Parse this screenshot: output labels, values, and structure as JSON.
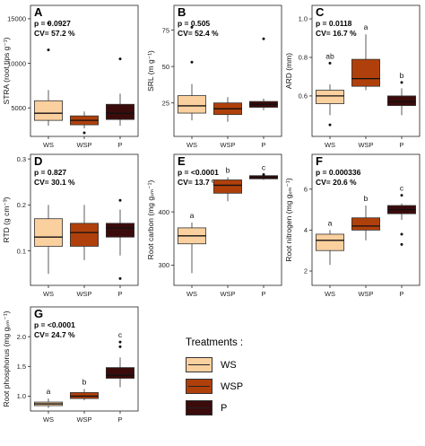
{
  "colors": {
    "WS": "#fbd09f",
    "WSP": "#b0400b",
    "P": "#3b0b0b"
  },
  "legend": {
    "title": "Treatments :",
    "items": [
      {
        "label": "WS",
        "color": "#fbd09f"
      },
      {
        "label": "WSP",
        "color": "#b0400b"
      },
      {
        "label": "P",
        "color": "#3b0b0b"
      }
    ]
  },
  "chart_data": [
    {
      "type": "box",
      "panel": "A",
      "p_text": "p = 0.0927",
      "cv_text": "CV= 57.2 %",
      "ylabel": "STRA (root tips g⁻¹)",
      "ylim": [
        1800,
        16500
      ],
      "yticks": [
        {
          "v": 5000,
          "label": "5000"
        },
        {
          "v": 10000,
          "label": "10000"
        },
        {
          "v": 15000,
          "label": "15000"
        }
      ],
      "categories": [
        "WS",
        "WSP",
        "P"
      ],
      "boxes": [
        {
          "min": 3000,
          "q1": 3600,
          "median": 4400,
          "q3": 5800,
          "max": 7000,
          "outliers": [
            11500,
            14500
          ],
          "letter": ""
        },
        {
          "min": 2700,
          "q1": 3100,
          "median": 3600,
          "q3": 4100,
          "max": 4600,
          "outliers": [
            2200
          ],
          "letter": ""
        },
        {
          "min": 3000,
          "q1": 3700,
          "median": 4400,
          "q3": 5400,
          "max": 6600,
          "outliers": [
            10500
          ],
          "letter": ""
        }
      ]
    },
    {
      "type": "box",
      "panel": "B",
      "p_text": "p = 0.505",
      "cv_text": "CV= 52.4 %",
      "ylabel": "SRL (m g⁻¹)",
      "ylim": [
        2,
        92
      ],
      "yticks": [
        {
          "v": 25,
          "label": "25"
        },
        {
          "v": 50,
          "label": "50"
        },
        {
          "v": 75,
          "label": "75"
        }
      ],
      "categories": [
        "WS",
        "WSP",
        "P"
      ],
      "boxes": [
        {
          "min": 13,
          "q1": 18,
          "median": 23,
          "q3": 30,
          "max": 38,
          "outliers": [
            53,
            77
          ],
          "letter": ""
        },
        {
          "min": 12,
          "q1": 17,
          "median": 21,
          "q3": 25,
          "max": 29,
          "outliers": [],
          "letter": ""
        },
        {
          "min": 20,
          "q1": 22,
          "median": 24,
          "q3": 26,
          "max": 28,
          "outliers": [
            69
          ],
          "letter": ""
        }
      ]
    },
    {
      "type": "box",
      "panel": "C",
      "p_text": "p = 0.0118",
      "cv_text": "CV= 16.7 %",
      "ylabel": "ARD (mm)",
      "ylim": [
        0.39,
        1.07
      ],
      "yticks": [
        {
          "v": 0.6,
          "label": "0.6"
        },
        {
          "v": 0.8,
          "label": "0.8"
        },
        {
          "v": 1.0,
          "label": "1.0"
        }
      ],
      "categories": [
        "WS",
        "WSP",
        "P"
      ],
      "boxes": [
        {
          "min": 0.5,
          "q1": 0.56,
          "median": 0.6,
          "q3": 0.63,
          "max": 0.66,
          "outliers": [
            0.77,
            0.45
          ],
          "letter": "ab"
        },
        {
          "min": 0.63,
          "q1": 0.65,
          "median": 0.69,
          "q3": 0.79,
          "max": 0.92,
          "outliers": [],
          "letter": "a"
        },
        {
          "min": 0.5,
          "q1": 0.55,
          "median": 0.57,
          "q3": 0.6,
          "max": 0.64,
          "outliers": [
            0.67
          ],
          "letter": "b"
        }
      ]
    },
    {
      "type": "box",
      "panel": "D",
      "p_text": "p = 0.827",
      "cv_text": "CV= 30.1 %",
      "ylabel": "RTD (g cm⁻³)",
      "ylim": [
        0.025,
        0.31
      ],
      "yticks": [
        {
          "v": 0.1,
          "label": "0.1"
        },
        {
          "v": 0.2,
          "label": "0.2"
        },
        {
          "v": 0.3,
          "label": "0.3"
        }
      ],
      "categories": [
        "WS",
        "WSP",
        "P"
      ],
      "boxes": [
        {
          "min": 0.05,
          "q1": 0.11,
          "median": 0.13,
          "q3": 0.17,
          "max": 0.2,
          "outliers": [],
          "letter": ""
        },
        {
          "min": 0.08,
          "q1": 0.11,
          "median": 0.14,
          "q3": 0.16,
          "max": 0.2,
          "outliers": [],
          "letter": ""
        },
        {
          "min": 0.09,
          "q1": 0.13,
          "median": 0.15,
          "q3": 0.16,
          "max": 0.19,
          "outliers": [
            0.21,
            0.04
          ],
          "letter": ""
        }
      ]
    },
    {
      "type": "box",
      "panel": "E",
      "p_text": "p = <0.0001",
      "cv_text": "CV= 13.7 %",
      "ylabel": "Root carbon (mg gₓₘ⁻¹)",
      "ylim": [
        262,
        508
      ],
      "yticks": [
        {
          "v": 300,
          "label": "300"
        },
        {
          "v": 400,
          "label": "400"
        }
      ],
      "categories": [
        "WS",
        "WSP",
        "P"
      ],
      "boxes": [
        {
          "min": 285,
          "q1": 340,
          "median": 355,
          "q3": 370,
          "max": 380,
          "outliers": [],
          "letter": "a"
        },
        {
          "min": 420,
          "q1": 435,
          "median": 450,
          "q3": 460,
          "max": 465,
          "outliers": [],
          "letter": "b"
        },
        {
          "min": 460,
          "q1": 462,
          "median": 465,
          "q3": 468,
          "max": 470,
          "outliers": [
            470
          ],
          "letter": "c"
        }
      ]
    },
    {
      "type": "box",
      "panel": "F",
      "p_text": "p = 0.000336",
      "cv_text": "CV= 20.6 %",
      "ylabel": "Root nitrogen (mg gₓₘ⁻¹)",
      "ylim": [
        1.3,
        7.7
      ],
      "yticks": [
        {
          "v": 2,
          "label": "2"
        },
        {
          "v": 4,
          "label": "4"
        },
        {
          "v": 6,
          "label": "6"
        }
      ],
      "categories": [
        "WS",
        "WSP",
        "P"
      ],
      "boxes": [
        {
          "min": 2.3,
          "q1": 3.0,
          "median": 3.5,
          "q3": 3.8,
          "max": 4.0,
          "outliers": [],
          "letter": "a"
        },
        {
          "min": 3.5,
          "q1": 4.0,
          "median": 4.2,
          "q3": 4.6,
          "max": 5.2,
          "outliers": [],
          "letter": "b"
        },
        {
          "min": 4.5,
          "q1": 4.8,
          "median": 5.0,
          "q3": 5.2,
          "max": 5.3,
          "outliers": [
            3.8,
            3.3,
            5.7
          ],
          "letter": "c"
        }
      ]
    },
    {
      "type": "box",
      "panel": "G",
      "p_text": "p = <0.0001",
      "cv_text": "CV= 24.7 %",
      "ylabel": "Root phosphorus (mg gₓₘ⁻¹)",
      "ylim": [
        0.75,
        2.5
      ],
      "yticks": [
        {
          "v": 1.0,
          "label": "1.0"
        },
        {
          "v": 1.5,
          "label": "1.5"
        },
        {
          "v": 2.0,
          "label": "2.0"
        }
      ],
      "categories": [
        "WS",
        "WSP",
        "P"
      ],
      "boxes": [
        {
          "min": 0.8,
          "q1": 0.84,
          "median": 0.87,
          "q3": 0.9,
          "max": 0.96,
          "outliers": [],
          "letter": "a"
        },
        {
          "min": 0.93,
          "q1": 0.96,
          "median": 1.0,
          "q3": 1.06,
          "max": 1.12,
          "outliers": [],
          "letter": "b"
        },
        {
          "min": 1.15,
          "q1": 1.3,
          "median": 1.35,
          "q3": 1.48,
          "max": 1.65,
          "outliers": [
            1.83,
            1.91
          ],
          "letter": "c"
        }
      ]
    }
  ]
}
